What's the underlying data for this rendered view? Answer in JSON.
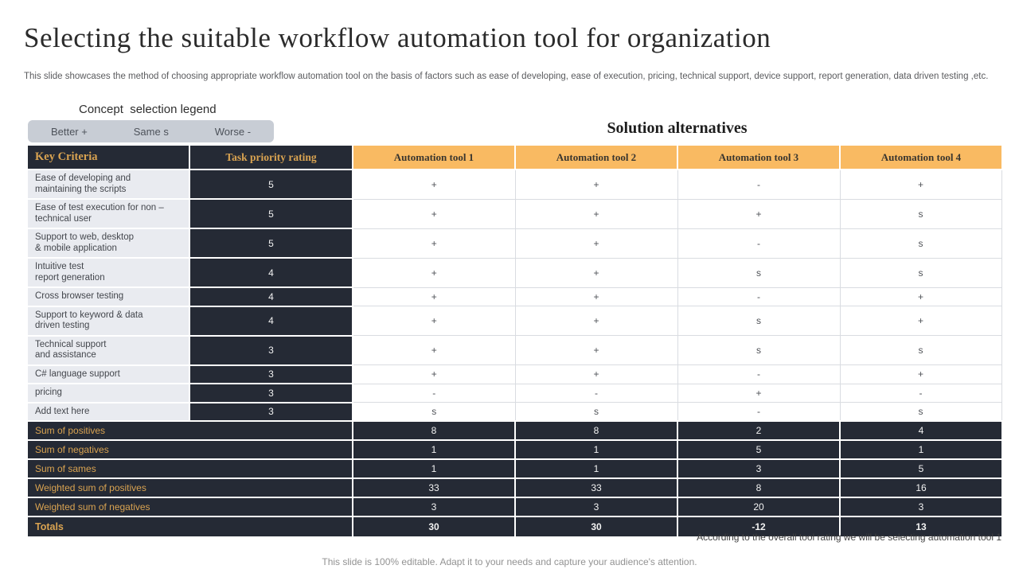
{
  "slide": {
    "title": "Selecting the suitable workflow automation tool for organization",
    "description": "This slide showcases the method of choosing appropriate workflow automation tool on the basis of factors such as ease of developing, ease of execution, pricing, technical support, device support, report generation, data driven testing ,etc.",
    "legend": {
      "label": "Concept  selection legend",
      "items": [
        "Better +",
        "Same s",
        "Worse -"
      ]
    },
    "solution_heading": "Solution alternatives",
    "footnote": "According to the overall tool rating we will be selecting automation tool 1",
    "bottom_note": "This slide is 100% editable. Adapt it to your needs and capture your audience's attention."
  },
  "table": {
    "headers": [
      "Key Criteria",
      "Task priority rating",
      "Automation tool 1",
      "Automation tool 2",
      "Automation tool 3",
      "Automation tool 4"
    ],
    "rows": [
      {
        "criteria": "Ease of developing and\nmaintaining the scripts",
        "rating": "5",
        "values": [
          "+",
          "+",
          "-",
          "+"
        ]
      },
      {
        "criteria": "Ease of test execution for non –\ntechnical user",
        "rating": "5",
        "values": [
          "+",
          "+",
          "+",
          "s"
        ]
      },
      {
        "criteria": "Support to web, desktop\n& mobile application",
        "rating": "5",
        "values": [
          "+",
          "+",
          "-",
          "s"
        ]
      },
      {
        "criteria": "Intuitive test\nreport generation",
        "rating": "4",
        "values": [
          "+",
          "+",
          "s",
          "s"
        ]
      },
      {
        "criteria": "Cross browser testing",
        "rating": "4",
        "values": [
          "+",
          "+",
          "-",
          "+"
        ]
      },
      {
        "criteria": "Support to keyword & data\ndriven testing",
        "rating": "4",
        "values": [
          "+",
          "+",
          "s",
          "+"
        ]
      },
      {
        "criteria": "Technical support\nand assistance",
        "rating": "3",
        "values": [
          "+",
          "+",
          "s",
          "s"
        ]
      },
      {
        "criteria": "C# language support",
        "rating": "3",
        "values": [
          "+",
          "+",
          "-",
          "+"
        ]
      },
      {
        "criteria": "pricing",
        "rating": "3",
        "values": [
          "-",
          "-",
          "+",
          "-"
        ]
      },
      {
        "criteria": "Add text here",
        "rating": "3",
        "values": [
          "s",
          "s",
          "-",
          "s"
        ]
      }
    ],
    "summary": [
      {
        "label": "Sum of positives",
        "values": [
          "8",
          "8",
          "2",
          "4"
        ],
        "bold": false
      },
      {
        "label": "Sum of negatives",
        "values": [
          "1",
          "1",
          "5",
          "1"
        ],
        "bold": false
      },
      {
        "label": "Sum of sames",
        "values": [
          "1",
          "1",
          "3",
          "5"
        ],
        "bold": false
      },
      {
        "label": "Weighted sum of positives",
        "values": [
          "33",
          "33",
          "8",
          "16"
        ],
        "bold": false
      },
      {
        "label": "Weighted sum of negatives",
        "values": [
          "3",
          "3",
          "20",
          "3"
        ],
        "bold": false
      },
      {
        "label": "Totals",
        "values": [
          "30",
          "30",
          "-12",
          "13"
        ],
        "bold": true
      }
    ]
  },
  "colors": {
    "dark": "#252a35",
    "orange": "#f9ba62",
    "gold": "#d9a351",
    "rowbg": "#e9ebf0",
    "grid": "#d9dce1",
    "legendbg": "#c8cdd5"
  }
}
